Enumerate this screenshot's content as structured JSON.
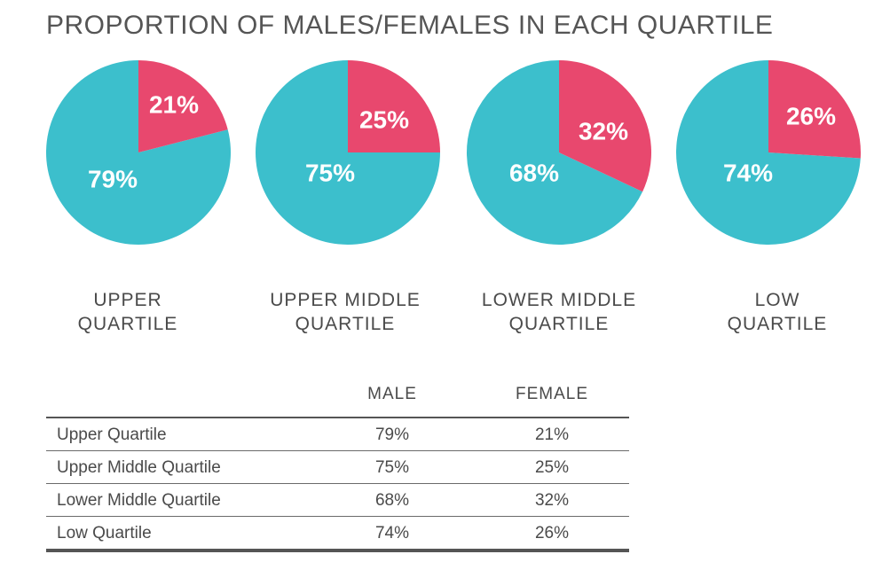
{
  "title": "PROPORTION OF MALES/FEMALES IN EACH QUARTILE",
  "colors": {
    "male": "#3cbfcc",
    "female": "#e8486e"
  },
  "chart_data": {
    "type": "pie",
    "title": "PROPORTION OF MALES/FEMALES IN EACH QUARTILE",
    "charts": [
      {
        "label_lines": [
          "UPPER",
          "QUARTILE"
        ],
        "female": 21,
        "male": 79,
        "female_label": "21%",
        "male_label": "79%"
      },
      {
        "label_lines": [
          "UPPER MIDDLE",
          "QUARTILE"
        ],
        "female": 25,
        "male": 75,
        "female_label": "25%",
        "male_label": "75%"
      },
      {
        "label_lines": [
          "LOWER MIDDLE",
          "QUARTILE"
        ],
        "female": 32,
        "male": 68,
        "female_label": "32%",
        "male_label": "68%"
      },
      {
        "label_lines": [
          "LOW",
          "QUARTILE"
        ],
        "female": 26,
        "male": 74,
        "female_label": "26%",
        "male_label": "74%"
      }
    ]
  },
  "table": {
    "headers": [
      "",
      "MALE",
      "FEMALE"
    ],
    "rows": [
      [
        "Upper Quartile",
        "79%",
        "21%"
      ],
      [
        "Upper Middle Quartile",
        "75%",
        "25%"
      ],
      [
        "Lower Middle Quartile",
        "68%",
        "32%"
      ],
      [
        "Low Quartile",
        "74%",
        "26%"
      ]
    ]
  }
}
